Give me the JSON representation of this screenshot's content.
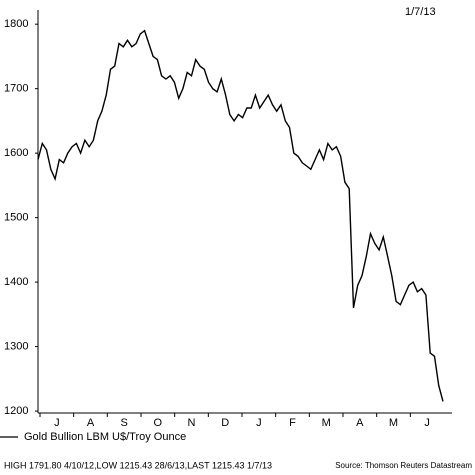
{
  "chart_data": {
    "type": "line",
    "date": "1/7/13",
    "months": [
      "J",
      "A",
      "S",
      "O",
      "N",
      "D",
      "J",
      "F",
      "M",
      "A",
      "M",
      "J"
    ],
    "series": [
      {
        "name": "Gold Bullion LBM U$/Troy Ounce",
        "color": "#000000",
        "values": [
          1590,
          1615,
          1605,
          1575,
          1560,
          1590,
          1585,
          1600,
          1610,
          1615,
          1600,
          1620,
          1610,
          1620,
          1650,
          1665,
          1690,
          1730,
          1735,
          1770,
          1765,
          1775,
          1765,
          1770,
          1785,
          1790,
          1770,
          1750,
          1745,
          1720,
          1715,
          1720,
          1710,
          1685,
          1700,
          1725,
          1720,
          1745,
          1735,
          1730,
          1710,
          1700,
          1695,
          1715,
          1690,
          1660,
          1650,
          1660,
          1655,
          1670,
          1670,
          1690,
          1670,
          1680,
          1690,
          1675,
          1665,
          1675,
          1650,
          1640,
          1600,
          1595,
          1585,
          1580,
          1575,
          1590,
          1605,
          1590,
          1615,
          1605,
          1610,
          1595,
          1555,
          1545,
          1360,
          1395,
          1410,
          1440,
          1475,
          1460,
          1450,
          1470,
          1440,
          1410,
          1370,
          1365,
          1380,
          1395,
          1400,
          1385,
          1390,
          1380,
          1290,
          1285,
          1240,
          1215
        ]
      }
    ],
    "ylim": [
      1197,
      1822
    ],
    "yticks": [
      1200,
      1300,
      1400,
      1500,
      1600,
      1700,
      1800
    ],
    "footer": "HIGH 1791.80 4/10/12,LOW 1215.43 28/6/13,LAST 1215.43 1/7/13",
    "source": "Source: Thomson Reuters Datastream"
  }
}
